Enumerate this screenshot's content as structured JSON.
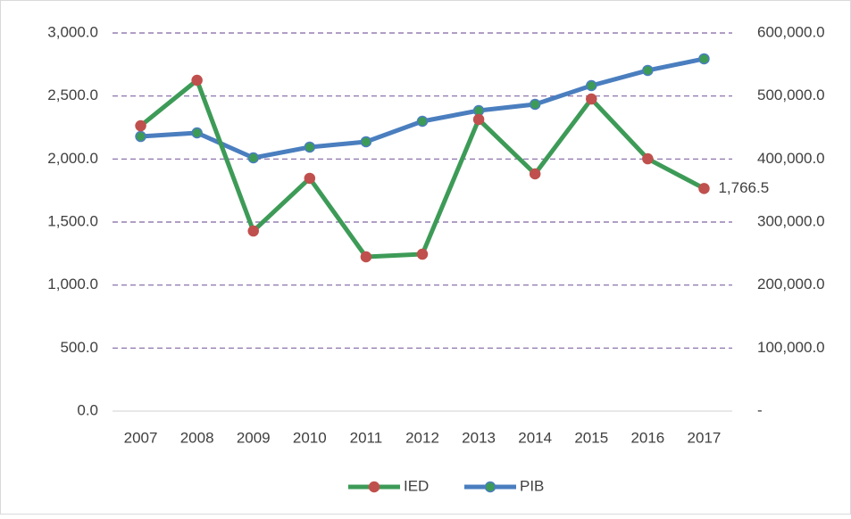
{
  "chart_data": {
    "type": "line",
    "categories": [
      "2007",
      "2008",
      "2009",
      "2010",
      "2011",
      "2012",
      "2013",
      "2014",
      "2015",
      "2016",
      "2017"
    ],
    "series": [
      {
        "name": "IED",
        "color": "#3d9b57",
        "marker_color": "#c0504d",
        "axis": "y",
        "values": [
          2264,
          2625,
          1429,
          1847,
          1224,
          1245,
          2314,
          1882,
          2476,
          2002,
          1766.5
        ],
        "value_labels": [
          null,
          null,
          null,
          null,
          null,
          null,
          null,
          null,
          null,
          null,
          "1,766.5"
        ]
      },
      {
        "name": "PIB",
        "color": "#4a7ebf",
        "marker_color": "#3d9b57",
        "axis": "y2",
        "values": [
          435800,
          441500,
          401900,
          418900,
          427400,
          459900,
          476900,
          486800,
          516500,
          540600,
          559000
        ]
      }
    ],
    "ylim": [
      0,
      3000
    ],
    "yticks": [
      {
        "value": 0,
        "label": "0.0"
      },
      {
        "value": 500,
        "label": "500.0"
      },
      {
        "value": 1000,
        "label": "1,000.0"
      },
      {
        "value": 1500,
        "label": "1,500.0"
      },
      {
        "value": 2000,
        "label": "2,000.0"
      },
      {
        "value": 2500,
        "label": "2,500.0"
      },
      {
        "value": 3000,
        "label": "3,000.0"
      }
    ],
    "y2lim": [
      0,
      600000
    ],
    "y2ticks": [
      {
        "value": 0,
        "label": "-"
      },
      {
        "value": 100000,
        "label": "100,000.0"
      },
      {
        "value": 200000,
        "label": "200,000.0"
      },
      {
        "value": 300000,
        "label": "300,000.0"
      },
      {
        "value": 400000,
        "label": "400,000.0"
      },
      {
        "value": 500000,
        "label": "500,000.0"
      },
      {
        "value": 600000,
        "label": "600,000.0"
      }
    ],
    "grid": true,
    "legend": "bottom"
  }
}
